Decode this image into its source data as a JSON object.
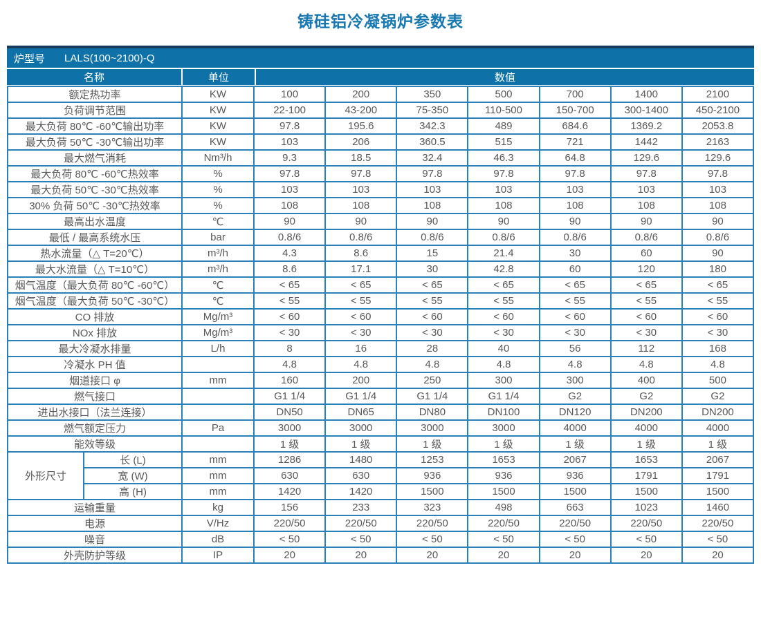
{
  "title": "铸硅铝冷凝锅炉参数表",
  "table": {
    "model_label": "炉型号",
    "model_value": "LALS(100~2100)-Q",
    "col_headers": {
      "name": "名称",
      "unit": "单位",
      "value": "数值"
    },
    "rows": [
      {
        "name": "额定热功率",
        "unit": "KW",
        "values": [
          "100",
          "200",
          "350",
          "500",
          "700",
          "1400",
          "2100"
        ]
      },
      {
        "name": "负荷调节范围",
        "unit": "KW",
        "values": [
          "22-100",
          "43-200",
          "75-350",
          "110-500",
          "150-700",
          "300-1400",
          "450-2100"
        ]
      },
      {
        "name": "最大负荷 80℃ -60℃输出功率",
        "unit": "KW",
        "values": [
          "97.8",
          "195.6",
          "342.3",
          "489",
          "684.6",
          "1369.2",
          "2053.8"
        ]
      },
      {
        "name": "最大负荷 50℃ -30℃输出功率",
        "unit": "KW",
        "values": [
          "103",
          "206",
          "360.5",
          "515",
          "721",
          "1442",
          "2163"
        ]
      },
      {
        "name": "最大燃气消耗",
        "unit": "Nm³/h",
        "values": [
          "9.3",
          "18.5",
          "32.4",
          "46.3",
          "64.8",
          "129.6",
          "129.6"
        ]
      },
      {
        "name": "最大负荷 80℃ -60℃热效率",
        "unit": "%",
        "values": [
          "97.8",
          "97.8",
          "97.8",
          "97.8",
          "97.8",
          "97.8",
          "97.8"
        ]
      },
      {
        "name": "最大负荷 50℃ -30℃热效率",
        "unit": "%",
        "values": [
          "103",
          "103",
          "103",
          "103",
          "103",
          "103",
          "103"
        ]
      },
      {
        "name": "30% 负荷 50℃ -30℃热效率",
        "unit": "%",
        "values": [
          "108",
          "108",
          "108",
          "108",
          "108",
          "108",
          "108"
        ]
      },
      {
        "name": "最高出水温度",
        "unit": "℃",
        "values": [
          "90",
          "90",
          "90",
          "90",
          "90",
          "90",
          "90"
        ]
      },
      {
        "name": "最低 / 最高系统水压",
        "unit": "bar",
        "values": [
          "0.8/6",
          "0.8/6",
          "0.8/6",
          "0.8/6",
          "0.8/6",
          "0.8/6",
          "0.8/6"
        ]
      },
      {
        "name": "热水流量（△ T=20℃）",
        "unit": "m³/h",
        "values": [
          "4.3",
          "8.6",
          "15",
          "21.4",
          "30",
          "60",
          "90"
        ]
      },
      {
        "name": "最大水流量（△ T=10℃）",
        "unit": "m³/h",
        "values": [
          "8.6",
          "17.1",
          "30",
          "42.8",
          "60",
          "120",
          "180"
        ]
      },
      {
        "name": "烟气温度（最大负荷 80℃ -60℃）",
        "unit": "℃",
        "values": [
          "< 65",
          "< 65",
          "< 65",
          "< 65",
          "< 65",
          "< 65",
          "< 65"
        ]
      },
      {
        "name": "烟气温度（最大负荷 50℃ -30℃）",
        "unit": "℃",
        "values": [
          "< 55",
          "< 55",
          "< 55",
          "< 55",
          "< 55",
          "< 55",
          "< 55"
        ]
      },
      {
        "name": "CO 排放",
        "unit": "Mg/m³",
        "values": [
          "< 60",
          "< 60",
          "< 60",
          "< 60",
          "< 60",
          "< 60",
          "< 60"
        ]
      },
      {
        "name": "NOx 排放",
        "unit": "Mg/m³",
        "values": [
          "< 30",
          "< 30",
          "< 30",
          "< 30",
          "< 30",
          "< 30",
          "< 30"
        ]
      },
      {
        "name": "最大冷凝水排量",
        "unit": "L/h",
        "values": [
          "8",
          "16",
          "28",
          "40",
          "56",
          "112",
          "168"
        ]
      },
      {
        "name": "冷凝水 PH 值",
        "unit": "",
        "values": [
          "4.8",
          "4.8",
          "4.8",
          "4.8",
          "4.8",
          "4.8",
          "4.8"
        ]
      },
      {
        "name": "烟道接口 φ",
        "unit": "mm",
        "values": [
          "160",
          "200",
          "250",
          "300",
          "300",
          "400",
          "500"
        ]
      },
      {
        "name": "燃气接口",
        "unit": "",
        "values": [
          "G1 1/4",
          "G1 1/4",
          "G1 1/4",
          "G1 1/4",
          "G2",
          "G2",
          "G2"
        ]
      },
      {
        "name": "进出水接口（法兰连接）",
        "unit": "",
        "values": [
          "DN50",
          "DN65",
          "DN80",
          "DN100",
          "DN120",
          "DN200",
          "DN200"
        ]
      },
      {
        "name": "燃气额定压力",
        "unit": "Pa",
        "values": [
          "3000",
          "3000",
          "3000",
          "3000",
          "4000",
          "4000",
          "4000"
        ]
      },
      {
        "name": "能效等级",
        "unit": "",
        "values": [
          "1 级",
          "1 级",
          "1 级",
          "1 级",
          "1 级",
          "1 级",
          "1 级"
        ]
      },
      {
        "group": "外形尺寸",
        "group_span": 3,
        "sub": true,
        "name": "长 (L)",
        "unit": "mm",
        "values": [
          "1286",
          "1480",
          "1253",
          "1653",
          "2067",
          "1653",
          "2067"
        ]
      },
      {
        "sub": true,
        "name": "宽 (W)",
        "unit": "mm",
        "values": [
          "630",
          "630",
          "936",
          "936",
          "936",
          "1791",
          "1791"
        ]
      },
      {
        "sub": true,
        "name": "高 (H)",
        "unit": "mm",
        "values": [
          "1420",
          "1420",
          "1500",
          "1500",
          "1500",
          "1500",
          "1500"
        ]
      },
      {
        "name": "运输重量",
        "unit": "kg",
        "values": [
          "156",
          "233",
          "323",
          "498",
          "663",
          "1023",
          "1460"
        ]
      },
      {
        "name": "电源",
        "unit": "V/Hz",
        "values": [
          "220/50",
          "220/50",
          "220/50",
          "220/50",
          "220/50",
          "220/50",
          "220/50"
        ]
      },
      {
        "name": "噪音",
        "unit": "dB",
        "values": [
          "< 50",
          "< 50",
          "< 50",
          "< 50",
          "< 50",
          "< 50",
          "< 50"
        ]
      },
      {
        "name": "外壳防护等级",
        "unit": "IP",
        "values": [
          "20",
          "20",
          "20",
          "20",
          "20",
          "20",
          "20"
        ]
      }
    ]
  }
}
